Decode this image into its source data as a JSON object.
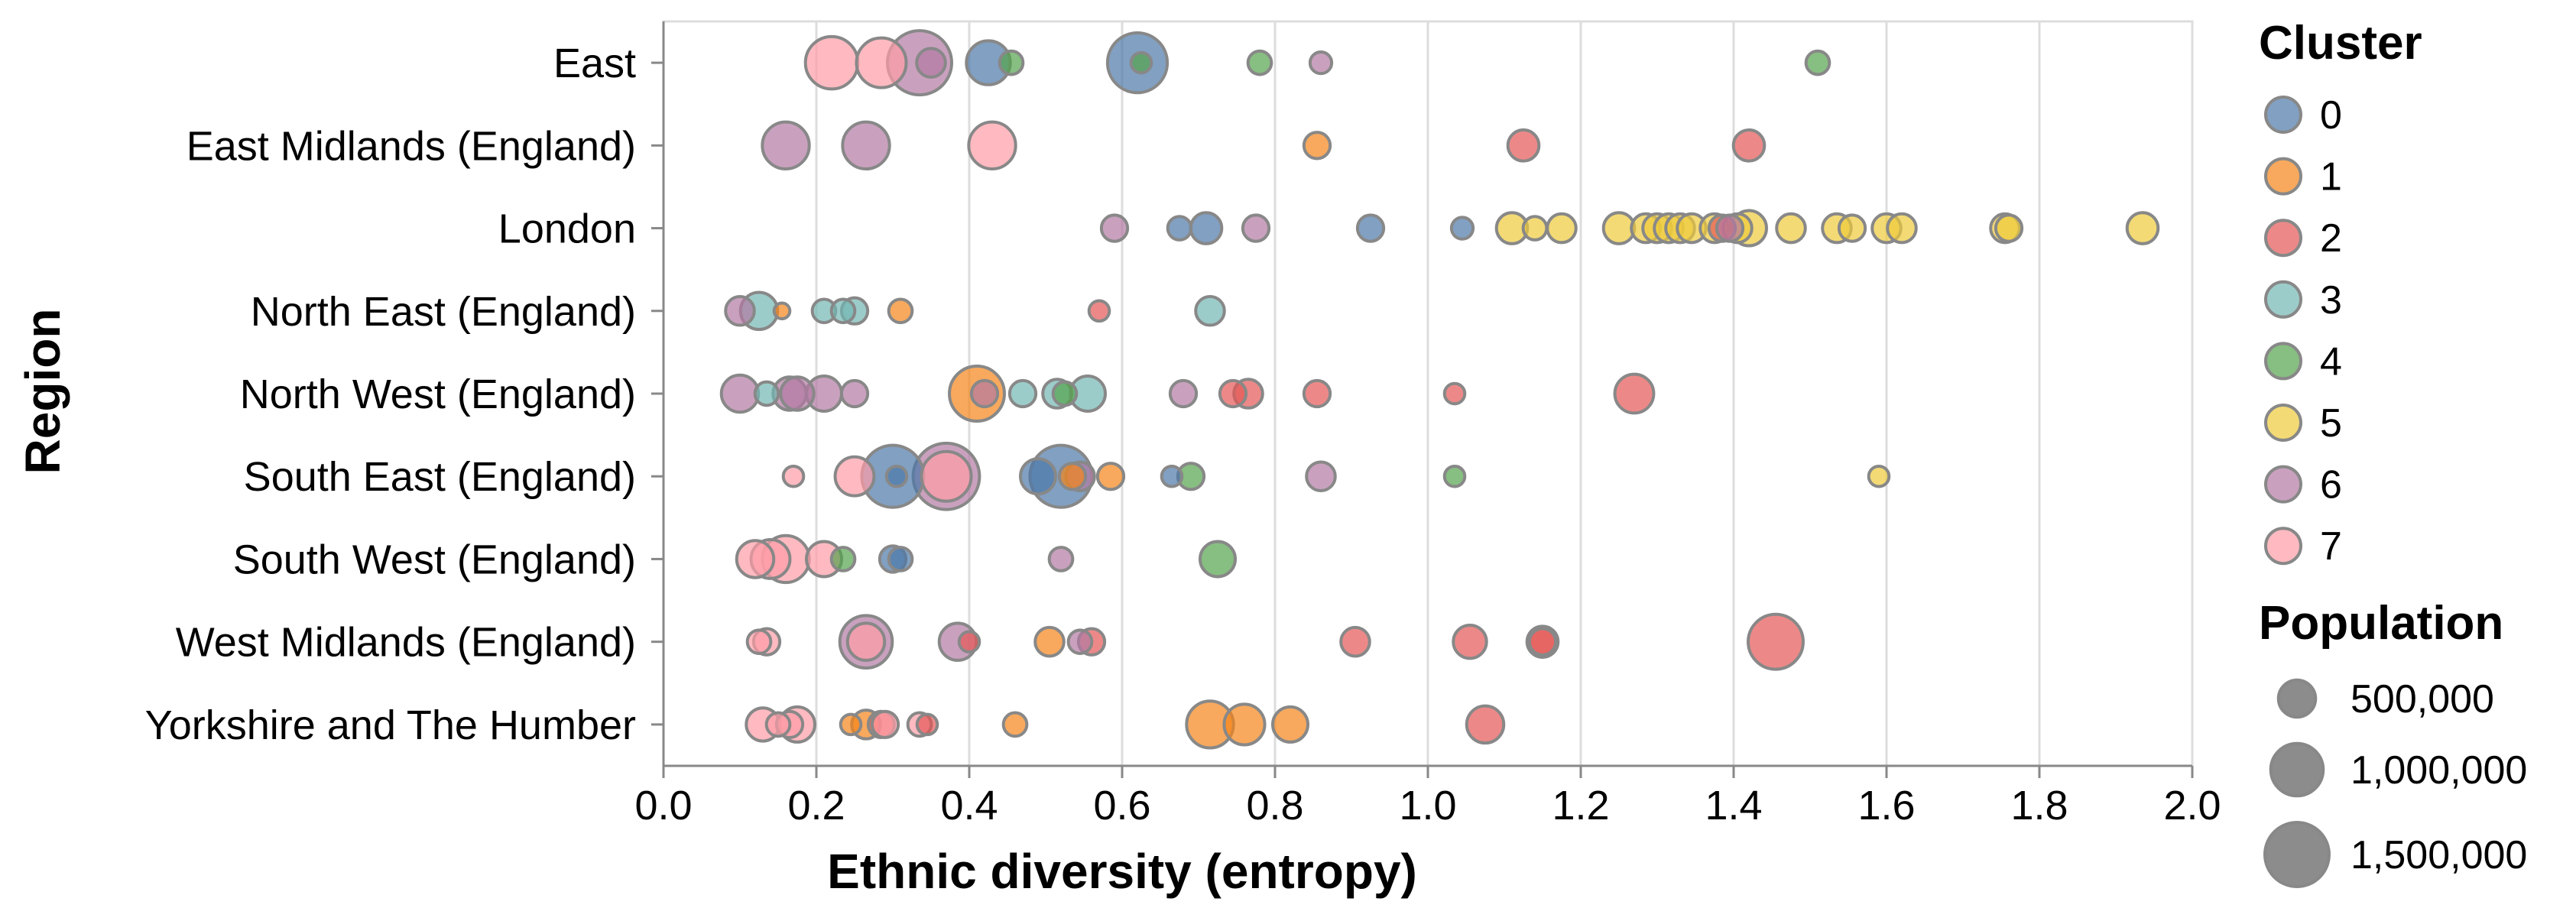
{
  "chart_data": {
    "type": "scatter",
    "xlabel": "Ethnic diversity (entropy)",
    "ylabel": "Region",
    "xlim": [
      0,
      2
    ],
    "xticks": [
      "0.0",
      "0.2",
      "0.4",
      "0.6",
      "0.8",
      "1.0",
      "1.2",
      "1.4",
      "1.6",
      "1.8",
      "2.0"
    ],
    "grid": true,
    "categories": [
      "East",
      "East Midlands (England)",
      "London",
      "North East (England)",
      "North West (England)",
      "South East (England)",
      "South West (England)",
      "West Midlands (England)",
      "Yorkshire and The Humber"
    ],
    "cluster_legend": {
      "title": "Cluster",
      "labels": [
        "0",
        "1",
        "2",
        "3",
        "4",
        "5",
        "6",
        "7"
      ],
      "colors": [
        "#4c78a8",
        "#f58518",
        "#e45756",
        "#72b7b2",
        "#54a24b",
        "#eeca3b",
        "#b279a2",
        "#ff9da6"
      ]
    },
    "size_legend": {
      "title": "Population",
      "labels": [
        "500,000",
        "1,000,000",
        "1,500,000"
      ],
      "values": [
        500000,
        1000000,
        1500000
      ]
    },
    "points": [
      {
        "region": "East",
        "x": 0.22,
        "cluster": 7,
        "pop": 1000000
      },
      {
        "region": "East",
        "x": 0.285,
        "cluster": 7,
        "pop": 900000
      },
      {
        "region": "East",
        "x": 0.335,
        "cluster": 6,
        "pop": 1500000
      },
      {
        "region": "East",
        "x": 0.35,
        "cluster": 6,
        "pop": 300000
      },
      {
        "region": "East",
        "x": 0.425,
        "cluster": 0,
        "pop": 700000
      },
      {
        "region": "East",
        "x": 0.455,
        "cluster": 4,
        "pop": 200000
      },
      {
        "region": "East",
        "x": 0.62,
        "cluster": 0,
        "pop": 1300000
      },
      {
        "region": "East",
        "x": 0.625,
        "cluster": 4,
        "pop": 150000
      },
      {
        "region": "East",
        "x": 0.78,
        "cluster": 4,
        "pop": 200000
      },
      {
        "region": "East",
        "x": 0.86,
        "cluster": 6,
        "pop": 170000
      },
      {
        "region": "East",
        "x": 1.51,
        "cluster": 4,
        "pop": 200000
      },
      {
        "region": "East Midlands (England)",
        "x": 0.16,
        "cluster": 6,
        "pop": 800000
      },
      {
        "region": "East Midlands (England)",
        "x": 0.265,
        "cluster": 6,
        "pop": 800000
      },
      {
        "region": "East Midlands (England)",
        "x": 0.43,
        "cluster": 7,
        "pop": 800000
      },
      {
        "region": "East Midlands (England)",
        "x": 0.855,
        "cluster": 1,
        "pop": 250000
      },
      {
        "region": "East Midlands (England)",
        "x": 1.125,
        "cluster": 2,
        "pop": 350000
      },
      {
        "region": "East Midlands (England)",
        "x": 1.42,
        "cluster": 2,
        "pop": 350000
      },
      {
        "region": "London",
        "x": 0.59,
        "cluster": 6,
        "pop": 250000
      },
      {
        "region": "London",
        "x": 0.675,
        "cluster": 0,
        "pop": 200000
      },
      {
        "region": "London",
        "x": 0.71,
        "cluster": 0,
        "pop": 350000
      },
      {
        "region": "London",
        "x": 0.775,
        "cluster": 6,
        "pop": 250000
      },
      {
        "region": "London",
        "x": 0.925,
        "cluster": 0,
        "pop": 250000
      },
      {
        "region": "London",
        "x": 1.045,
        "cluster": 0,
        "pop": 170000
      },
      {
        "region": "London",
        "x": 1.11,
        "cluster": 5,
        "pop": 350000
      },
      {
        "region": "London",
        "x": 1.14,
        "cluster": 5,
        "pop": 200000
      },
      {
        "region": "London",
        "x": 1.175,
        "cluster": 5,
        "pop": 300000
      },
      {
        "region": "London",
        "x": 1.25,
        "cluster": 5,
        "pop": 350000
      },
      {
        "region": "London",
        "x": 1.285,
        "cluster": 5,
        "pop": 300000
      },
      {
        "region": "London",
        "x": 1.3,
        "cluster": 5,
        "pop": 300000
      },
      {
        "region": "London",
        "x": 1.315,
        "cluster": 5,
        "pop": 300000
      },
      {
        "region": "London",
        "x": 1.33,
        "cluster": 5,
        "pop": 300000
      },
      {
        "region": "London",
        "x": 1.345,
        "cluster": 5,
        "pop": 300000
      },
      {
        "region": "London",
        "x": 1.375,
        "cluster": 5,
        "pop": 300000
      },
      {
        "region": "London",
        "x": 1.385,
        "cluster": 2,
        "pop": 250000
      },
      {
        "region": "London",
        "x": 1.395,
        "cluster": 6,
        "pop": 250000
      },
      {
        "region": "London",
        "x": 1.405,
        "cluster": 5,
        "pop": 300000
      },
      {
        "region": "London",
        "x": 1.42,
        "cluster": 5,
        "pop": 450000
      },
      {
        "region": "London",
        "x": 1.475,
        "cluster": 5,
        "pop": 300000
      },
      {
        "region": "London",
        "x": 1.535,
        "cluster": 5,
        "pop": 300000
      },
      {
        "region": "London",
        "x": 1.555,
        "cluster": 5,
        "pop": 250000
      },
      {
        "region": "London",
        "x": 1.6,
        "cluster": 5,
        "pop": 300000
      },
      {
        "region": "London",
        "x": 1.62,
        "cluster": 5,
        "pop": 300000
      },
      {
        "region": "London",
        "x": 1.755,
        "cluster": 5,
        "pop": 300000
      },
      {
        "region": "London",
        "x": 1.76,
        "cluster": 5,
        "pop": 250000
      },
      {
        "region": "London",
        "x": 1.935,
        "cluster": 5,
        "pop": 350000
      },
      {
        "region": "North East (England)",
        "x": 0.1,
        "cluster": 6,
        "pop": 300000
      },
      {
        "region": "North East (England)",
        "x": 0.125,
        "cluster": 3,
        "pop": 500000
      },
      {
        "region": "North East (England)",
        "x": 0.155,
        "cluster": 1,
        "pop": 90000
      },
      {
        "region": "North East (England)",
        "x": 0.21,
        "cluster": 3,
        "pop": 200000
      },
      {
        "region": "North East (England)",
        "x": 0.235,
        "cluster": 3,
        "pop": 200000
      },
      {
        "region": "North East (England)",
        "x": 0.25,
        "cluster": 3,
        "pop": 250000
      },
      {
        "region": "North East (England)",
        "x": 0.31,
        "cluster": 1,
        "pop": 200000
      },
      {
        "region": "North East (England)",
        "x": 0.57,
        "cluster": 2,
        "pop": 150000
      },
      {
        "region": "North East (England)",
        "x": 0.715,
        "cluster": 3,
        "pop": 300000
      },
      {
        "region": "North West (England)",
        "x": 0.1,
        "cluster": 6,
        "pop": 500000
      },
      {
        "region": "North West (England)",
        "x": 0.135,
        "cluster": 3,
        "pop": 200000
      },
      {
        "region": "North West (England)",
        "x": 0.165,
        "cluster": 6,
        "pop": 400000
      },
      {
        "region": "North West (England)",
        "x": 0.175,
        "cluster": 6,
        "pop": 400000
      },
      {
        "region": "North West (England)",
        "x": 0.21,
        "cluster": 6,
        "pop": 450000
      },
      {
        "region": "North West (England)",
        "x": 0.25,
        "cluster": 6,
        "pop": 250000
      },
      {
        "region": "North West (England)",
        "x": 0.41,
        "cluster": 1,
        "pop": 1100000
      },
      {
        "region": "North West (England)",
        "x": 0.42,
        "cluster": 6,
        "pop": 250000
      },
      {
        "region": "North West (England)",
        "x": 0.47,
        "cluster": 3,
        "pop": 250000
      },
      {
        "region": "North West (England)",
        "x": 0.515,
        "cluster": 3,
        "pop": 300000
      },
      {
        "region": "North West (England)",
        "x": 0.525,
        "cluster": 4,
        "pop": 200000
      },
      {
        "region": "North West (England)",
        "x": 0.555,
        "cluster": 3,
        "pop": 450000
      },
      {
        "region": "North West (England)",
        "x": 0.68,
        "cluster": 6,
        "pop": 250000
      },
      {
        "region": "North West (England)",
        "x": 0.745,
        "cluster": 2,
        "pop": 250000
      },
      {
        "region": "North West (England)",
        "x": 0.765,
        "cluster": 2,
        "pop": 300000
      },
      {
        "region": "North West (England)",
        "x": 0.855,
        "cluster": 2,
        "pop": 250000
      },
      {
        "region": "North West (England)",
        "x": 1.035,
        "cluster": 2,
        "pop": 150000
      },
      {
        "region": "North West (England)",
        "x": 1.27,
        "cluster": 2,
        "pop": 550000
      },
      {
        "region": "South East (England)",
        "x": 0.17,
        "cluster": 7,
        "pop": 150000
      },
      {
        "region": "South East (England)",
        "x": 0.25,
        "cluster": 7,
        "pop": 550000
      },
      {
        "region": "South East (England)",
        "x": 0.3,
        "cluster": 0,
        "pop": 1400000
      },
      {
        "region": "South East (England)",
        "x": 0.305,
        "cluster": 0,
        "pop": 150000
      },
      {
        "region": "South East (England)",
        "x": 0.37,
        "cluster": 6,
        "pop": 1600000
      },
      {
        "region": "South East (England)",
        "x": 0.37,
        "cluster": 7,
        "pop": 900000
      },
      {
        "region": "South East (England)",
        "x": 0.49,
        "cluster": 0,
        "pop": 450000
      },
      {
        "region": "South East (England)",
        "x": 0.52,
        "cluster": 0,
        "pop": 1400000
      },
      {
        "region": "South East (England)",
        "x": 0.535,
        "cluster": 1,
        "pop": 250000
      },
      {
        "region": "South East (England)",
        "x": 0.545,
        "cluster": 6,
        "pop": 300000
      },
      {
        "region": "South East (England)",
        "x": 0.585,
        "cluster": 1,
        "pop": 250000
      },
      {
        "region": "South East (England)",
        "x": 0.665,
        "cluster": 0,
        "pop": 150000
      },
      {
        "region": "South East (England)",
        "x": 0.69,
        "cluster": 4,
        "pop": 250000
      },
      {
        "region": "South East (England)",
        "x": 0.86,
        "cluster": 6,
        "pop": 300000
      },
      {
        "region": "South East (England)",
        "x": 1.035,
        "cluster": 4,
        "pop": 150000
      },
      {
        "region": "South East (England)",
        "x": 1.59,
        "cluster": 5,
        "pop": 150000
      },
      {
        "region": "South West (England)",
        "x": 0.12,
        "cluster": 7,
        "pop": 500000
      },
      {
        "region": "South West (England)",
        "x": 0.14,
        "cluster": 7,
        "pop": 550000
      },
      {
        "region": "South West (England)",
        "x": 0.16,
        "cluster": 7,
        "pop": 800000
      },
      {
        "region": "South West (England)",
        "x": 0.21,
        "cluster": 7,
        "pop": 450000
      },
      {
        "region": "South West (England)",
        "x": 0.235,
        "cluster": 4,
        "pop": 200000
      },
      {
        "region": "South West (England)",
        "x": 0.3,
        "cluster": 0,
        "pop": 250000
      },
      {
        "region": "South West (England)",
        "x": 0.31,
        "cluster": 0,
        "pop": 200000
      },
      {
        "region": "South West (England)",
        "x": 0.52,
        "cluster": 6,
        "pop": 200000
      },
      {
        "region": "South West (England)",
        "x": 0.725,
        "cluster": 4,
        "pop": 450000
      },
      {
        "region": "West Midlands (England)",
        "x": 0.125,
        "cluster": 7,
        "pop": 200000
      },
      {
        "region": "West Midlands (England)",
        "x": 0.135,
        "cluster": 7,
        "pop": 250000
      },
      {
        "region": "West Midlands (England)",
        "x": 0.265,
        "cluster": 6,
        "pop": 1000000
      },
      {
        "region": "West Midlands (England)",
        "x": 0.265,
        "cluster": 7,
        "pop": 500000
      },
      {
        "region": "West Midlands (England)",
        "x": 0.385,
        "cluster": 6,
        "pop": 500000
      },
      {
        "region": "West Midlands (England)",
        "x": 0.4,
        "cluster": 2,
        "pop": 150000
      },
      {
        "region": "West Midlands (England)",
        "x": 0.505,
        "cluster": 1,
        "pop": 300000
      },
      {
        "region": "West Midlands (England)",
        "x": 0.545,
        "cluster": 6,
        "pop": 200000
      },
      {
        "region": "West Midlands (England)",
        "x": 0.56,
        "cluster": 2,
        "pop": 250000
      },
      {
        "region": "West Midlands (England)",
        "x": 0.905,
        "cluster": 2,
        "pop": 300000
      },
      {
        "region": "West Midlands (England)",
        "x": 1.055,
        "cluster": 2,
        "pop": 400000
      },
      {
        "region": "West Midlands (England)",
        "x": 1.15,
        "cluster": 2,
        "pop": 350000
      },
      {
        "region": "West Midlands (England)",
        "x": 1.15,
        "cluster": 2,
        "pop": 250000
      },
      {
        "region": "West Midlands (England)",
        "x": 1.455,
        "cluster": 2,
        "pop": 1100000
      },
      {
        "region": "Yorkshire and The Humber",
        "x": 0.13,
        "cluster": 7,
        "pop": 400000
      },
      {
        "region": "Yorkshire and The Humber",
        "x": 0.15,
        "cluster": 7,
        "pop": 200000
      },
      {
        "region": "Yorkshire and The Humber",
        "x": 0.165,
        "cluster": 7,
        "pop": 250000
      },
      {
        "region": "Yorkshire and The Humber",
        "x": 0.175,
        "cluster": 7,
        "pop": 450000
      },
      {
        "region": "Yorkshire and The Humber",
        "x": 0.245,
        "cluster": 1,
        "pop": 150000
      },
      {
        "region": "Yorkshire and The Humber",
        "x": 0.265,
        "cluster": 1,
        "pop": 300000
      },
      {
        "region": "Yorkshire and The Humber",
        "x": 0.285,
        "cluster": 2,
        "pop": 250000
      },
      {
        "region": "Yorkshire and The Humber",
        "x": 0.29,
        "cluster": 7,
        "pop": 250000
      },
      {
        "region": "Yorkshire and The Humber",
        "x": 0.335,
        "cluster": 7,
        "pop": 200000
      },
      {
        "region": "Yorkshire and The Humber",
        "x": 0.345,
        "cluster": 2,
        "pop": 150000
      },
      {
        "region": "Yorkshire and The Humber",
        "x": 0.46,
        "cluster": 1,
        "pop": 200000
      },
      {
        "region": "Yorkshire and The Humber",
        "x": 0.715,
        "cluster": 1,
        "pop": 800000
      },
      {
        "region": "Yorkshire and The Humber",
        "x": 0.76,
        "cluster": 1,
        "pop": 600000
      },
      {
        "region": "Yorkshire and The Humber",
        "x": 0.82,
        "cluster": 1,
        "pop": 450000
      },
      {
        "region": "Yorkshire and The Humber",
        "x": 1.075,
        "cluster": 2,
        "pop": 500000
      }
    ]
  }
}
